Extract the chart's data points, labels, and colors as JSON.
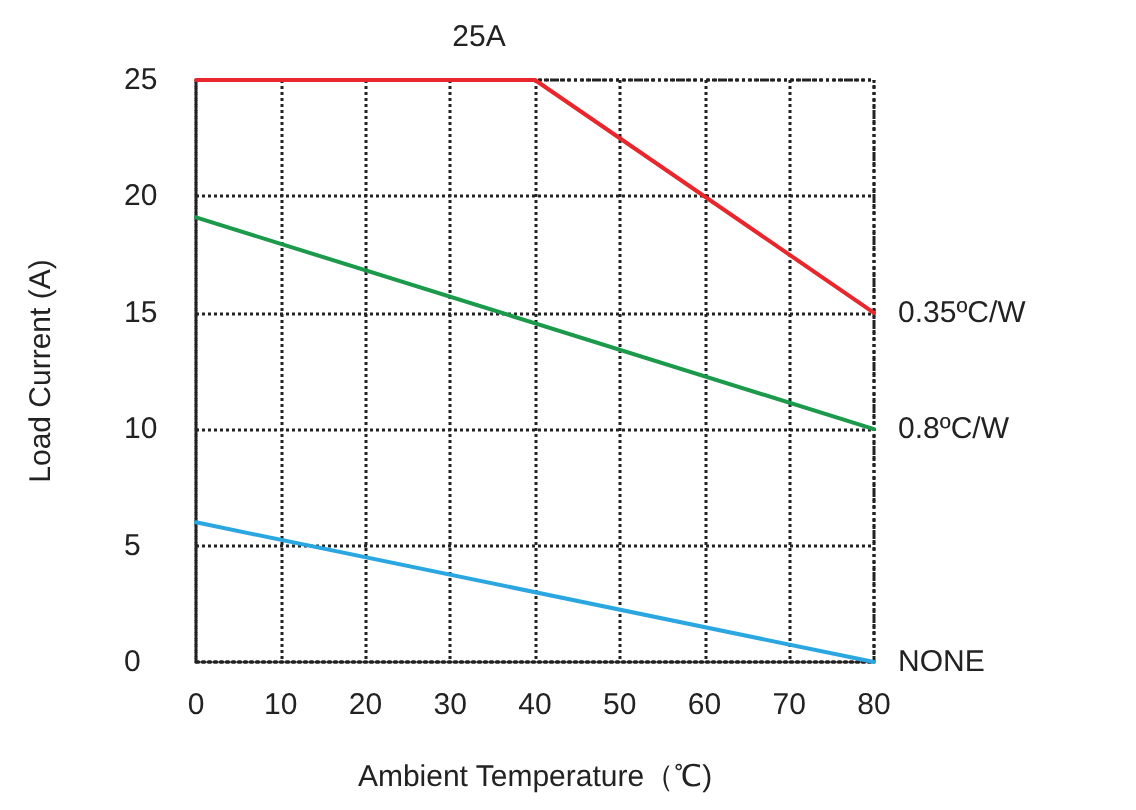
{
  "chart_data": {
    "type": "line",
    "xlabel": "Ambient Temperature（℃)",
    "ylabel": "Load Current (A)",
    "xlim": [
      0,
      80
    ],
    "xticks": [
      0,
      10,
      20,
      30,
      40,
      50,
      60,
      70,
      80
    ],
    "ylim": [
      0,
      25
    ],
    "yticks": [
      0,
      5,
      10,
      15,
      20,
      25
    ],
    "grid": true,
    "legend": false,
    "marker": "none",
    "line_style": "solid",
    "annotations": [
      {
        "text": "25A",
        "x": 40,
        "y": 25
      }
    ],
    "series": [
      {
        "name": "0.35ºC/W",
        "color": "#e8262c",
        "x": [
          0,
          40,
          80
        ],
        "values": [
          25,
          25,
          15
        ]
      },
      {
        "name": "0.8ºC/W",
        "color": "#1a9a4a",
        "x": [
          0,
          80
        ],
        "values": [
          19.1,
          10
        ]
      },
      {
        "name": "NONE",
        "color": "#2aa6e0",
        "x": [
          0,
          80
        ],
        "values": [
          6,
          0
        ]
      }
    ]
  }
}
